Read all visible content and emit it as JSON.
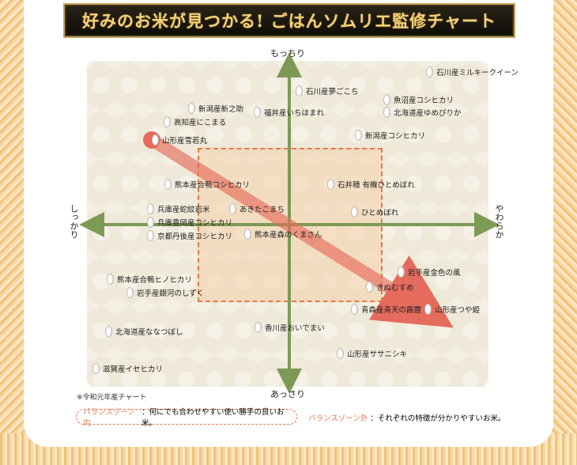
{
  "title": "好みのお米が見つかる! ごはんソムリエ監修チャート",
  "axes": {
    "top": "もっちり",
    "bottom": "あっさり",
    "left": "しっかり",
    "right": "やわらか"
  },
  "items": [
    "石川産ミルキークイーン",
    "石川産夢ごこち",
    "魚沼産コシヒカリ",
    "北海道産ゆめぴりか",
    "新潟産新之助",
    "福井産いちほまれ",
    "高知産にこまる",
    "新潟産コシヒカリ",
    "山形産雪若丸",
    "熊本産合鴨コシヒカリ",
    "石井穂 有機ひとめぼれ",
    "兵庫産蛇紋岩米",
    "あきたこまち",
    "ひとめぼれ",
    "兵庫豊岡産コシヒカリ",
    "京都丹後産コシヒカリ",
    "熊本産森のくまさん",
    "岩手産金色の風",
    "熊本産合鴨ヒノヒカリ",
    "きぬむすめ",
    "岩手産銀河のしずく",
    "青森産青天の霹靂",
    "山形産つや姫",
    "北海道産ななつぼし",
    "香川産おいでまい",
    "山形産ササニシキ",
    "滋賀産イセヒカリ"
  ],
  "note": "※令和元年産チャート",
  "legend": {
    "inside_label": "バランスゾーン内",
    "inside_text": "：何にでも合わせやすい使い勝手の良いお米。",
    "outside_label": "バランスゾーン外",
    "outside_text": "：それぞれの特徴が分かりやすいお米。"
  },
  "colors": {
    "axis": "#7d9a55",
    "arrow": "#e56b5c",
    "balance_border": "#e8774a"
  }
}
